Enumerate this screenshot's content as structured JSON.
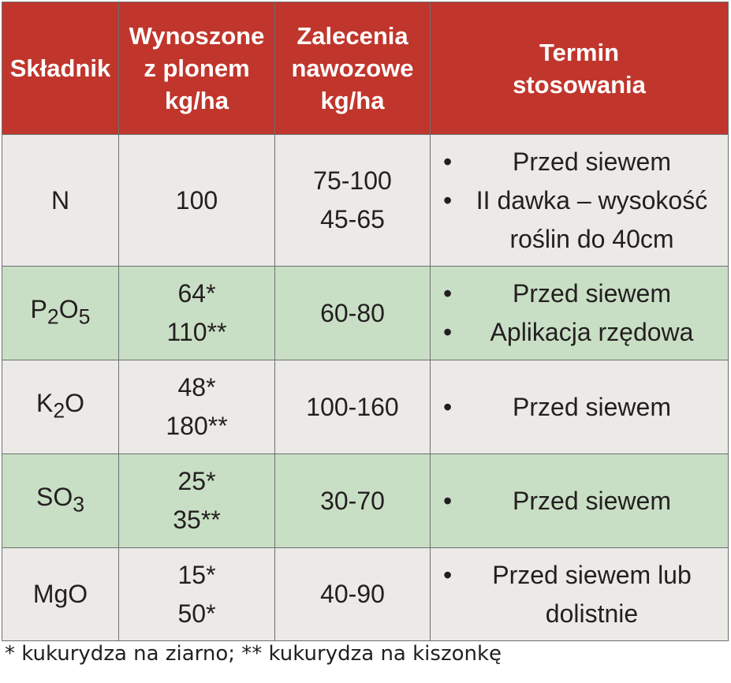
{
  "headers": {
    "component": "Składnik",
    "removed": [
      "Wynoszone",
      "z plonem",
      "kg/ha"
    ],
    "recommended": [
      "Zalecenia",
      "nawozowe",
      "kg/ha"
    ],
    "timing": [
      "Termin",
      "stosowania"
    ]
  },
  "rows": [
    {
      "component": {
        "base": "N"
      },
      "removed": [
        "100"
      ],
      "recommended": [
        "75-100",
        "45-65"
      ],
      "timing": [
        "Przed siewem",
        "II dawka – wysokość roślin do 40cm"
      ]
    },
    {
      "component": {
        "base": "P",
        "sub1": "2",
        "base2": "O",
        "sub2": "5"
      },
      "removed": [
        "64*",
        "110**"
      ],
      "recommended": [
        "60-80"
      ],
      "timing": [
        "Przed siewem",
        "Aplikacja rzędowa"
      ]
    },
    {
      "component": {
        "base": "K",
        "sub1": "2",
        "base2": "O"
      },
      "removed": [
        "48*",
        "180**"
      ],
      "recommended": [
        "100-160"
      ],
      "timing": [
        "Przed siewem"
      ]
    },
    {
      "component": {
        "base": "SO",
        "sub1": "3"
      },
      "removed": [
        "25*",
        "35**"
      ],
      "recommended": [
        "30-70"
      ],
      "timing": [
        "Przed siewem"
      ]
    },
    {
      "component": {
        "base": "MgO"
      },
      "removed": [
        "15*",
        "50*"
      ],
      "recommended": [
        "40-90"
      ],
      "timing": [
        "Przed siewem lub dolistnie"
      ]
    }
  ],
  "footnote": "* kukurydza na ziarno; ** kukurydza na kiszonkę"
}
